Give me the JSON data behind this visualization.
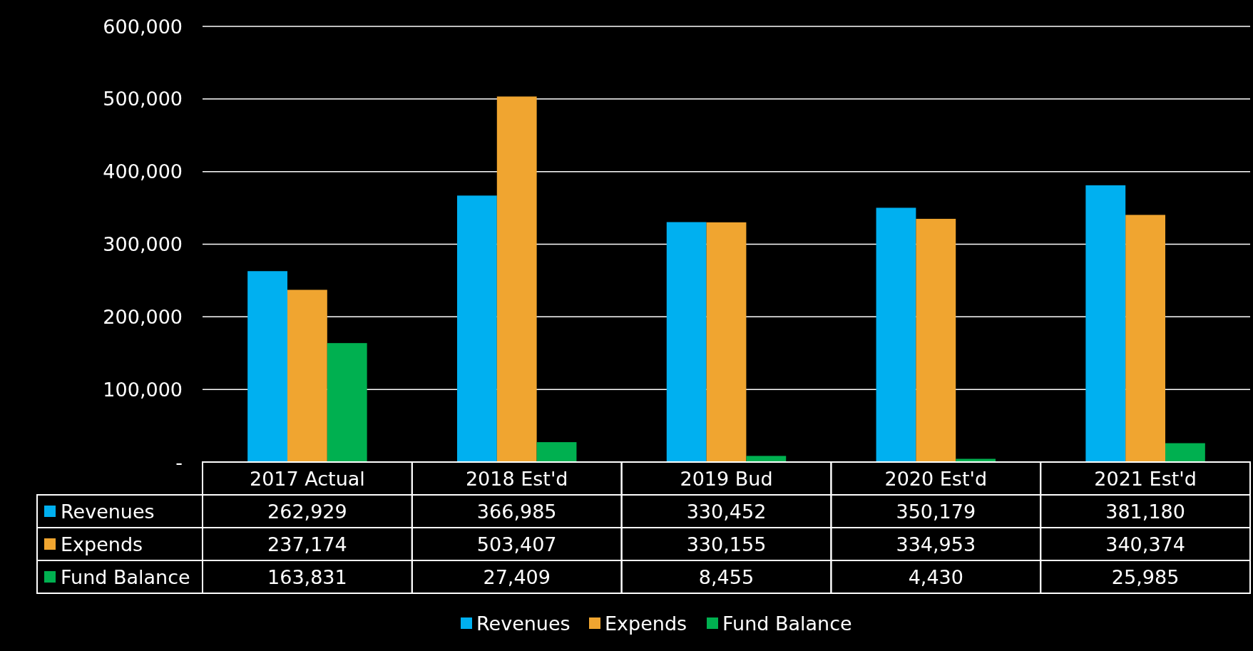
{
  "chart_data": {
    "type": "bar",
    "categories": [
      "2017 Actual",
      "2018 Est'd",
      "2019 Bud",
      "2020 Est'd",
      "2021 Est'd"
    ],
    "series": [
      {
        "name": "Revenues",
        "color": "#00b0f0",
        "values": [
          262929,
          366985,
          330452,
          350179,
          381180
        ],
        "value_labels": [
          "262,929",
          "366,985",
          "330,452",
          "350,179",
          "381,180"
        ]
      },
      {
        "name": "Expends",
        "color": "#f0a530",
        "values": [
          237174,
          503407,
          330155,
          334953,
          340374
        ],
        "value_labels": [
          "237,174",
          "503,407",
          "330,155",
          "334,953",
          "340,374"
        ]
      },
      {
        "name": "Fund Balance",
        "color": "#00b050",
        "values": [
          163831,
          27409,
          8455,
          4430,
          25985
        ],
        "value_labels": [
          "163,831",
          "27,409",
          "8,455",
          "4,430",
          "25,985"
        ]
      }
    ],
    "ylim": [
      0,
      600000
    ],
    "yticks": [
      {
        "value": 0,
        "label": "-"
      },
      {
        "value": 100000,
        "label": "100,000"
      },
      {
        "value": 200000,
        "label": "200,000"
      },
      {
        "value": 300000,
        "label": "300,000"
      },
      {
        "value": 400000,
        "label": "400,000"
      },
      {
        "value": 500000,
        "label": "500,000"
      },
      {
        "value": 600000,
        "label": "600,000"
      }
    ],
    "grid": "y",
    "legend": "bottom"
  }
}
